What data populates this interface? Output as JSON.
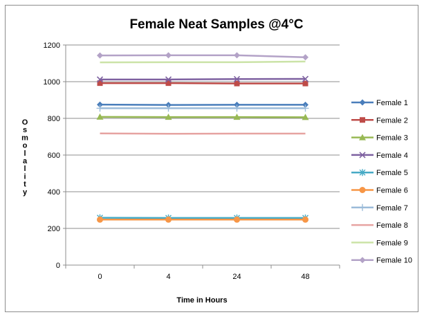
{
  "chart_data": {
    "type": "line",
    "title": "Female Neat Samples @4°C",
    "xlabel": "Time in Hours",
    "ylabel": "Osmolality",
    "categories": [
      "0",
      "4",
      "24",
      "48"
    ],
    "ylim": [
      0,
      1200
    ],
    "yticks": [
      0,
      200,
      400,
      600,
      800,
      1000,
      1200
    ],
    "grid": "horizontal",
    "legend_position": "right",
    "series": [
      {
        "name": "Female 1",
        "color": "#4a7ebb",
        "marker": "diamond",
        "values": [
          875,
          873,
          874,
          874
        ]
      },
      {
        "name": "Female 2",
        "color": "#be4b48",
        "marker": "square",
        "values": [
          992,
          992,
          990,
          990
        ]
      },
      {
        "name": "Female 3",
        "color": "#98b954",
        "marker": "triangle",
        "values": [
          808,
          807,
          807,
          806
        ]
      },
      {
        "name": "Female 4",
        "color": "#7d60a0",
        "marker": "x",
        "values": [
          1012,
          1012,
          1014,
          1015
        ]
      },
      {
        "name": "Female 5",
        "color": "#46aac5",
        "marker": "star",
        "values": [
          258,
          257,
          257,
          257
        ]
      },
      {
        "name": "Female 6",
        "color": "#f79646",
        "marker": "circle",
        "values": [
          248,
          248,
          248,
          248
        ]
      },
      {
        "name": "Female 7",
        "color": "#9bbbd9",
        "marker": "plus",
        "values": [
          855,
          855,
          855,
          855
        ]
      },
      {
        "name": "Female 8",
        "color": "#e6a3a1",
        "marker": "none",
        "values": [
          718,
          716,
          717,
          717
        ]
      },
      {
        "name": "Female 9",
        "color": "#cbe3a7",
        "marker": "none",
        "values": [
          1105,
          1106,
          1106,
          1110
        ]
      },
      {
        "name": "Female 10",
        "color": "#b3a2c7",
        "marker": "diamond",
        "values": [
          1143,
          1144,
          1144,
          1133
        ]
      }
    ]
  }
}
